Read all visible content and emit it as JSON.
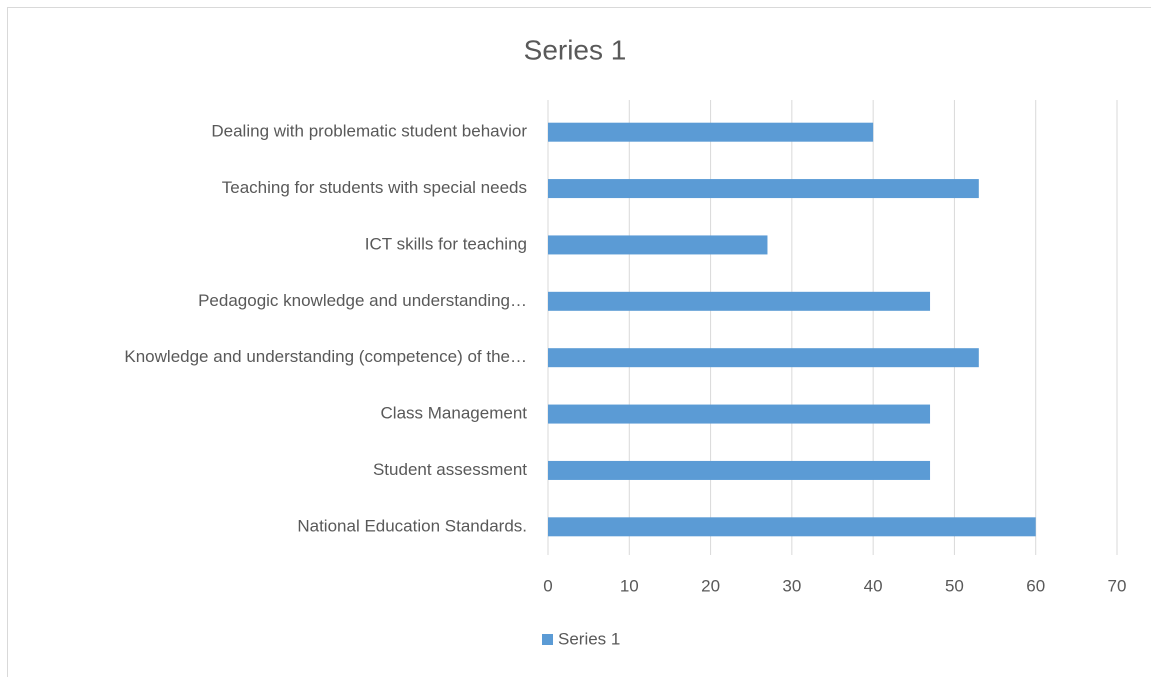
{
  "chart_data": {
    "type": "bar",
    "orientation": "horizontal",
    "title": "Series 1",
    "categories": [
      "Dealing with problematic student behavior",
      "Teaching for students with special needs",
      "ICT skills for teaching",
      "Pedagogic knowledge and understanding…",
      "Knowledge and understanding (competence) of the…",
      "Class Management",
      "Student assessment",
      "National Education Standards."
    ],
    "series": [
      {
        "name": "Series 1",
        "color": "#5b9bd5",
        "values": [
          40,
          53,
          27,
          47,
          53,
          47,
          47,
          60
        ]
      }
    ],
    "xlim": [
      0,
      70
    ],
    "xticks": [
      0,
      10,
      20,
      30,
      40,
      50,
      60,
      70
    ],
    "grid": true,
    "legend": "bottom"
  }
}
